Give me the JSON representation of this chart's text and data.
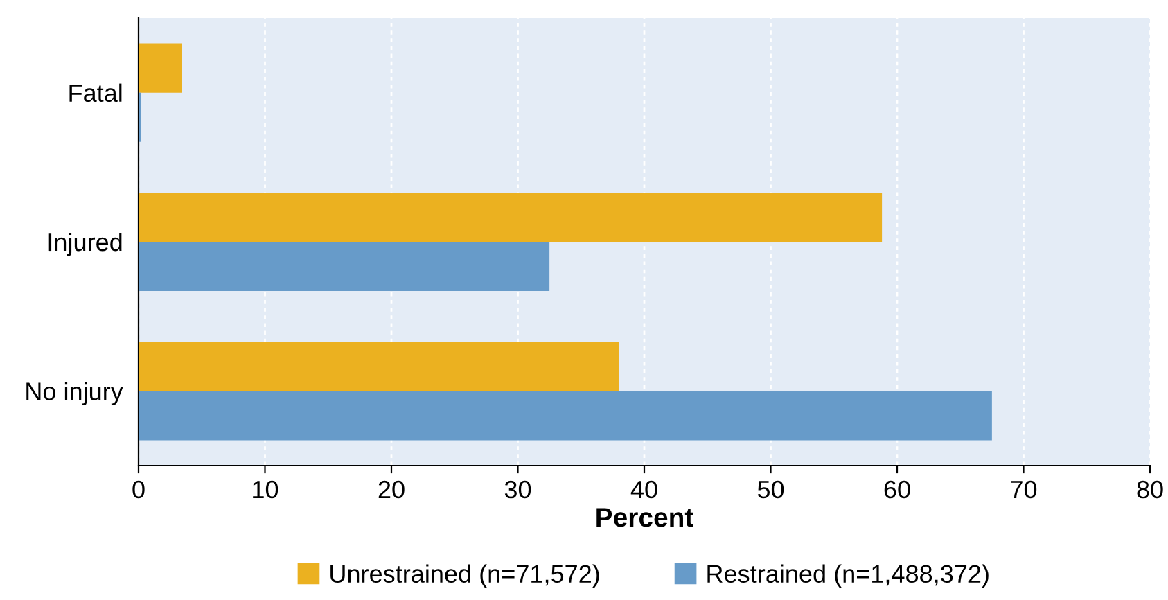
{
  "chart_data": {
    "type": "bar",
    "orientation": "horizontal",
    "xlabel": "Percent",
    "categories": [
      "Fatal",
      "Injured",
      "No injury"
    ],
    "series": [
      {
        "name": "Unrestrained (n=71,572)",
        "color": "#ebb120",
        "values": [
          3.4,
          58.8,
          38.0
        ]
      },
      {
        "name": "Restrained (n=1,488,372)",
        "color": "#679bc9",
        "values": [
          0.2,
          32.5,
          67.5
        ]
      }
    ],
    "xlim": [
      0,
      80
    ],
    "xticks": [
      0,
      10,
      20,
      30,
      40,
      50,
      60,
      70,
      80
    ],
    "grid": "x",
    "legend": "bottom"
  }
}
